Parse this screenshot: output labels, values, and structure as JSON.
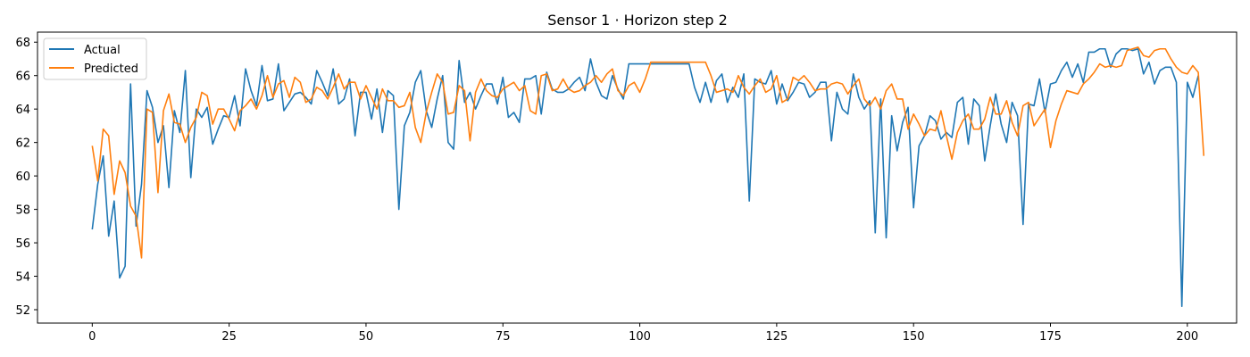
{
  "chart_data": {
    "type": "line",
    "title": "Sensor 1 · Horizon step 2",
    "xlabel": "",
    "ylabel": "",
    "xlim": [
      -10,
      209
    ],
    "ylim": [
      51.2,
      68.6
    ],
    "x_ticks": [
      0,
      25,
      50,
      75,
      100,
      125,
      150,
      175,
      200
    ],
    "y_ticks": [
      52,
      54,
      56,
      58,
      60,
      62,
      64,
      66,
      68
    ],
    "grid": false,
    "legend_position": "upper left",
    "series": [
      {
        "name": "Actual",
        "color": "#1f77b4",
        "values": [
          56.8,
          59.5,
          61.2,
          56.4,
          58.5,
          53.9,
          54.6,
          65.5,
          57.0,
          59.5,
          65.1,
          64.1,
          62.0,
          63.0,
          59.3,
          63.9,
          62.6,
          66.3,
          59.9,
          64.0,
          63.5,
          64.1,
          61.9,
          62.8,
          63.6,
          63.5,
          64.8,
          63.0,
          66.4,
          65.1,
          64.2,
          66.6,
          64.5,
          64.6,
          66.7,
          63.9,
          64.4,
          64.9,
          65.0,
          64.7,
          64.3,
          66.3,
          65.6,
          64.8,
          66.4,
          64.3,
          64.6,
          65.8,
          62.4,
          65.0,
          65.0,
          63.4,
          65.2,
          62.6,
          65.1,
          64.8,
          58.0,
          63.0,
          63.8,
          65.6,
          66.3,
          63.9,
          62.9,
          64.6,
          66.0,
          62.0,
          61.6,
          66.9,
          64.4,
          65.0,
          64.0,
          64.8,
          65.5,
          65.5,
          64.3,
          65.9,
          63.5,
          63.8,
          63.2,
          65.8,
          65.8,
          66.0,
          63.7,
          66.2,
          65.2,
          65.0,
          65.0,
          65.2,
          65.6,
          65.9,
          65.1,
          67.0,
          65.6,
          64.8,
          64.6,
          66.0,
          65.2,
          64.6,
          66.7,
          66.7,
          66.7,
          66.7,
          66.7,
          66.7,
          66.7,
          66.7,
          66.7,
          66.7,
          66.7,
          66.7,
          65.3,
          64.4,
          65.6,
          64.4,
          65.7,
          66.1,
          64.4,
          65.3,
          64.7,
          66.1,
          58.5,
          65.8,
          65.6,
          65.5,
          66.3,
          64.3,
          65.5,
          64.5,
          65.0,
          65.6,
          65.5,
          64.7,
          65.0,
          65.6,
          65.6,
          62.1,
          65.0,
          64.0,
          63.7,
          66.1,
          64.7,
          64.0,
          64.5,
          56.6,
          64.6,
          56.3,
          63.6,
          61.5,
          63.2,
          64.1,
          58.1,
          61.8,
          62.4,
          63.6,
          63.3,
          62.2,
          62.6,
          62.3,
          64.4,
          64.7,
          61.9,
          64.6,
          64.2,
          60.9,
          63.0,
          64.9,
          63.1,
          62.0,
          64.4,
          63.6,
          57.1,
          64.3,
          64.2,
          65.8,
          63.8,
          65.5,
          65.6,
          66.3,
          66.8,
          65.9,
          66.7,
          65.6,
          67.4,
          67.4,
          67.6,
          67.6,
          66.5,
          67.3,
          67.6,
          67.6,
          67.5,
          67.6,
          66.1,
          66.8,
          65.5,
          66.3,
          66.5,
          66.5,
          65.6,
          52.2,
          65.6,
          64.7,
          66.0
        ]
      },
      {
        "name": "Predicted",
        "color": "#ff7f0e",
        "values": [
          61.8,
          59.7,
          62.8,
          62.4,
          58.9,
          60.9,
          60.2,
          58.2,
          57.6,
          55.1,
          64.0,
          63.8,
          59.0,
          63.9,
          64.9,
          63.2,
          63.1,
          62.0,
          62.9,
          63.5,
          65.0,
          64.8,
          63.1,
          64.0,
          64.0,
          63.4,
          62.7,
          63.9,
          64.2,
          64.6,
          64.0,
          64.8,
          66.0,
          64.7,
          65.5,
          65.7,
          64.7,
          65.9,
          65.6,
          64.4,
          64.6,
          65.3,
          65.1,
          64.6,
          65.3,
          66.1,
          65.2,
          65.6,
          65.6,
          64.6,
          65.4,
          64.7,
          64.0,
          65.2,
          64.5,
          64.5,
          64.1,
          64.2,
          65.0,
          62.9,
          62.0,
          63.8,
          65.0,
          66.1,
          65.6,
          63.7,
          63.8,
          65.4,
          65.1,
          62.1,
          65.0,
          65.8,
          65.1,
          64.8,
          64.7,
          65.2,
          65.4,
          65.6,
          65.1,
          65.4,
          63.9,
          63.7,
          66.0,
          66.1,
          65.1,
          65.2,
          65.8,
          65.2,
          65.0,
          65.1,
          65.4,
          65.6,
          66.0,
          65.6,
          66.1,
          66.4,
          65.1,
          64.8,
          65.4,
          65.6,
          65.0,
          65.8,
          66.8,
          66.8,
          66.8,
          66.8,
          66.8,
          66.8,
          66.8,
          66.8,
          66.8,
          66.8,
          66.8,
          66.0,
          65.0,
          65.1,
          65.2,
          65.0,
          66.0,
          65.3,
          64.9,
          65.4,
          65.8,
          65.0,
          65.2,
          66.0,
          64.4,
          64.6,
          65.9,
          65.7,
          66.0,
          65.6,
          65.1,
          65.2,
          65.2,
          65.5,
          65.6,
          65.5,
          64.9,
          65.4,
          65.8,
          64.6,
          64.2,
          64.7,
          64.0,
          65.1,
          65.5,
          64.6,
          64.6,
          62.8,
          63.7,
          63.1,
          62.4,
          62.8,
          62.7,
          63.9,
          62.4,
          61.0,
          62.6,
          63.3,
          63.7,
          62.8,
          62.8,
          63.4,
          64.7,
          63.7,
          63.7,
          64.5,
          63.2,
          62.4,
          64.2,
          64.4,
          63.0,
          63.5,
          64.0,
          61.7,
          63.3,
          64.3,
          65.1,
          65.0,
          64.9,
          65.5,
          65.8,
          66.2,
          66.7,
          66.5,
          66.6,
          66.5,
          66.6,
          67.5,
          67.6,
          67.7,
          67.2,
          67.1,
          67.5,
          67.6,
          67.6,
          67.0,
          66.5,
          66.2,
          66.1,
          66.6,
          66.2,
          61.2
        ]
      }
    ]
  }
}
